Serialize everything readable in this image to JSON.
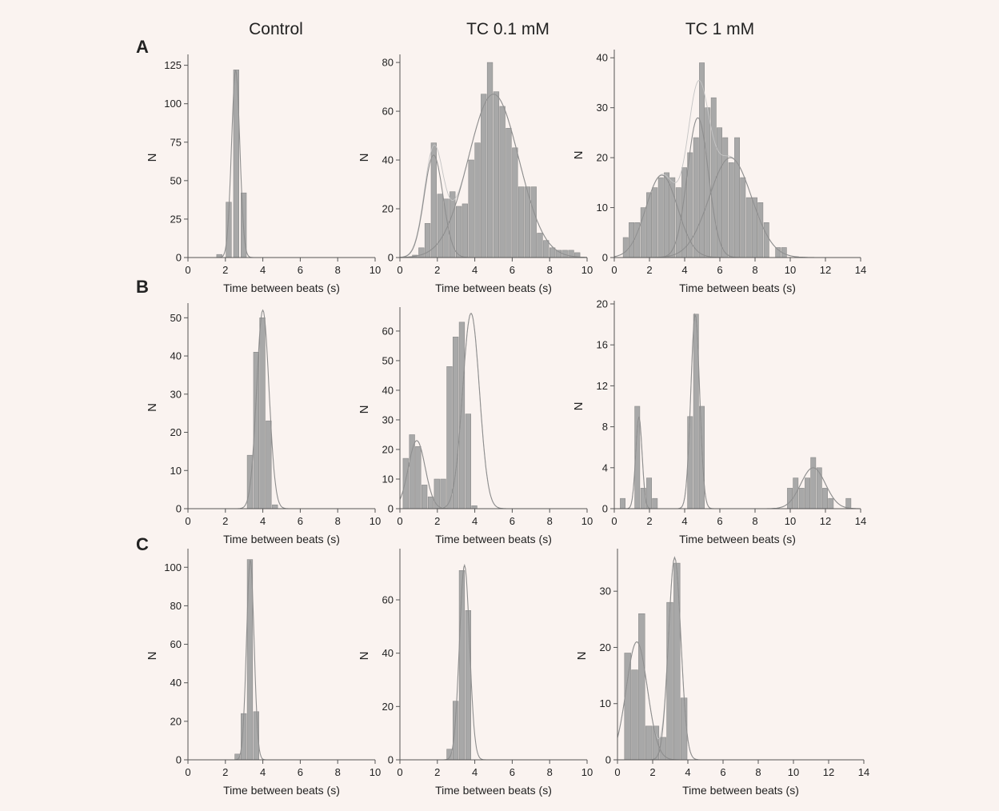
{
  "column_titles": [
    "Control",
    "TC 0.1 mM",
    "TC 1 mM"
  ],
  "row_labels": [
    "A",
    "B",
    "C"
  ],
  "colors": {
    "bar_fill": "#a8a8a8",
    "bar_stroke": "#8a8a8a",
    "fit_curve": "#8e8e8e",
    "sum_curve": "#c4c4c4",
    "axis": "#555555",
    "background": "#faf3f0"
  },
  "chart_data": [
    {
      "id": "A-control",
      "type": "bar",
      "xlabel": "Time between beats (s)",
      "ylabel": "N",
      "xlim": [
        0,
        10
      ],
      "xticks": [
        0,
        2,
        4,
        6,
        8,
        10
      ],
      "ylim": [
        0,
        130
      ],
      "yticks": [
        0,
        25,
        50,
        75,
        100,
        125
      ],
      "bin_width": 0.33,
      "x": [
        1.7,
        2.2,
        2.6,
        3.0
      ],
      "values": [
        2,
        36,
        122,
        42
      ],
      "fits": [
        {
          "mean": 2.55,
          "sd": 0.22,
          "amp": 122
        }
      ]
    },
    {
      "id": "A-tc01",
      "type": "bar",
      "xlabel": "Time between beats (s)",
      "ylabel": "N",
      "xlim": [
        0,
        10
      ],
      "xticks": [
        0,
        2,
        4,
        6,
        8,
        10
      ],
      "ylim": [
        0,
        82
      ],
      "yticks": [
        0,
        20,
        40,
        60,
        80
      ],
      "bin_width": 0.33,
      "x": [
        0.83,
        1.17,
        1.5,
        1.83,
        2.17,
        2.5,
        2.83,
        3.17,
        3.5,
        3.83,
        4.17,
        4.5,
        4.83,
        5.17,
        5.5,
        5.83,
        6.17,
        6.5,
        6.83,
        7.17,
        7.5,
        7.83,
        8.17,
        8.5,
        8.83,
        9.17,
        9.5
      ],
      "values": [
        1,
        4,
        14,
        47,
        26,
        24,
        27,
        21,
        22,
        40,
        47,
        67,
        80,
        68,
        62,
        53,
        45,
        29,
        29,
        29,
        10,
        7,
        4,
        3,
        3,
        3,
        2
      ],
      "fits": [
        {
          "mean": 1.8,
          "sd": 0.5,
          "amp": 42
        },
        {
          "mean": 5.0,
          "sd": 1.35,
          "amp": 67
        }
      ],
      "sum_curve": true
    },
    {
      "id": "A-tc1",
      "type": "bar",
      "xlabel": "Time between beats (s)",
      "ylabel": "N",
      "xlim": [
        0,
        14
      ],
      "xticks": [
        0,
        2,
        4,
        6,
        8,
        10,
        12,
        14
      ],
      "ylim": [
        0,
        41
      ],
      "yticks": [
        0,
        10,
        20,
        30,
        40
      ],
      "bin_width": 0.33,
      "x": [
        0.67,
        1.0,
        1.33,
        1.67,
        2.0,
        2.33,
        2.67,
        3.0,
        3.33,
        3.67,
        4.0,
        4.33,
        4.67,
        5.0,
        5.33,
        5.67,
        6.0,
        6.33,
        6.67,
        7.0,
        7.33,
        7.67,
        8.0,
        8.33,
        8.67,
        9.33,
        9.67
      ],
      "values": [
        4,
        7,
        7,
        10,
        13,
        14,
        16,
        17,
        16,
        14,
        18,
        21,
        24,
        39,
        30,
        32,
        26,
        24,
        19,
        24,
        16,
        12,
        12,
        11,
        7,
        2,
        2
      ],
      "fits": [
        {
          "mean": 2.7,
          "sd": 0.9,
          "amp": 16.5
        },
        {
          "mean": 4.75,
          "sd": 0.6,
          "amp": 28
        },
        {
          "mean": 6.6,
          "sd": 1.2,
          "amp": 20
        }
      ],
      "sum_curve": true
    },
    {
      "id": "B-control",
      "type": "bar",
      "xlabel": "Time between beats (s)",
      "ylabel": "N",
      "xlim": [
        0,
        10
      ],
      "xticks": [
        0,
        2,
        4,
        6,
        8,
        10
      ],
      "ylim": [
        0,
        53
      ],
      "yticks": [
        0,
        10,
        20,
        30,
        40,
        50
      ],
      "bin_width": 0.33,
      "x": [
        3.33,
        3.67,
        4.0,
        4.33,
        4.67
      ],
      "values": [
        14,
        41,
        50,
        23,
        1
      ],
      "fits": [
        {
          "mean": 4.0,
          "sd": 0.33,
          "amp": 52
        }
      ]
    },
    {
      "id": "B-tc01",
      "type": "bar",
      "xlabel": "Time between beats (s)",
      "ylabel": "N",
      "xlim": [
        0,
        10
      ],
      "xticks": [
        0,
        2,
        4,
        6,
        8,
        10
      ],
      "ylim": [
        0,
        67
      ],
      "yticks": [
        0,
        10,
        20,
        30,
        40,
        50,
        60
      ],
      "bin_width": 0.33,
      "x": [
        0.33,
        0.67,
        1.0,
        1.33,
        1.67,
        2.0,
        2.33,
        2.67,
        3.0,
        3.33,
        3.67,
        4.0,
        4.33,
        4.67
      ],
      "values": [
        17,
        25,
        21,
        8,
        4,
        10,
        10,
        48,
        58,
        63,
        32,
        1,
        0,
        0
      ],
      "fits": [
        {
          "mean": 0.9,
          "sd": 0.45,
          "amp": 23
        },
        {
          "mean": 3.8,
          "sd": 0.45,
          "amp": 66
        }
      ],
      "sum_curve": true
    },
    {
      "id": "B-tc1",
      "type": "bar",
      "xlabel": "Time between beats (s)",
      "ylabel": "N",
      "xlim": [
        0,
        14
      ],
      "xticks": [
        0,
        2,
        4,
        6,
        8,
        10,
        12,
        14
      ],
      "ylim": [
        0,
        20
      ],
      "yticks": [
        0,
        4,
        8,
        12,
        16,
        20
      ],
      "bin_width": 0.33,
      "x": [
        0.5,
        1.33,
        1.67,
        2.0,
        2.33,
        4.33,
        4.67,
        5.0,
        10.0,
        10.33,
        10.67,
        11.0,
        11.33,
        11.67,
        12.0,
        12.33,
        13.33
      ],
      "values": [
        1,
        10,
        2,
        3,
        1,
        9,
        19,
        10,
        2,
        3,
        2,
        3,
        5,
        4,
        2,
        1,
        1
      ],
      "fits": [
        {
          "mean": 1.4,
          "sd": 0.18,
          "amp": 9
        },
        {
          "mean": 4.6,
          "sd": 0.25,
          "amp": 19
        },
        {
          "mean": 11.3,
          "sd": 0.7,
          "amp": 4
        }
      ],
      "sum_curve": true
    },
    {
      "id": "C-control",
      "type": "bar",
      "xlabel": "Time between beats (s)",
      "ylabel": "N",
      "xlim": [
        0,
        10
      ],
      "xticks": [
        0,
        2,
        4,
        6,
        8,
        10
      ],
      "ylim": [
        0,
        108
      ],
      "yticks": [
        0,
        20,
        40,
        60,
        80,
        100
      ],
      "bin_width": 0.33,
      "x": [
        2.67,
        3.0,
        3.33,
        3.67
      ],
      "values": [
        3,
        24,
        104,
        25
      ],
      "fits": [
        {
          "mean": 3.33,
          "sd": 0.2,
          "amp": 104
        }
      ]
    },
    {
      "id": "C-tc01",
      "type": "bar",
      "xlabel": "Time between beats (s)",
      "ylabel": "N",
      "xlim": [
        0,
        10
      ],
      "xticks": [
        0,
        2,
        4,
        6,
        8,
        10
      ],
      "ylim": [
        0,
        78
      ],
      "yticks": [
        0,
        20,
        40,
        60
      ],
      "bin_width": 0.33,
      "x": [
        2.67,
        3.0,
        3.33,
        3.67
      ],
      "values": [
        4,
        22,
        71,
        56
      ],
      "fits": [
        {
          "mean": 3.45,
          "sd": 0.27,
          "amp": 73
        }
      ]
    },
    {
      "id": "C-tc1",
      "type": "bar",
      "xlabel": "Time between beats (s)",
      "ylabel": "N",
      "xlim": [
        0,
        14
      ],
      "xticks": [
        0,
        2,
        4,
        6,
        8,
        10,
        12,
        14
      ],
      "ylim": [
        0,
        37
      ],
      "yticks": [
        0,
        10,
        20,
        30
      ],
      "bin_width": 0.4,
      "x": [
        0.6,
        1.0,
        1.4,
        1.8,
        2.2,
        2.6,
        3.0,
        3.4,
        3.8
      ],
      "values": [
        19,
        16,
        26,
        6,
        6,
        4,
        28,
        35,
        11
      ],
      "fits": [
        {
          "mean": 1.1,
          "sd": 0.6,
          "amp": 21
        },
        {
          "mean": 3.25,
          "sd": 0.35,
          "amp": 36
        }
      ],
      "sum_curve": true
    }
  ]
}
